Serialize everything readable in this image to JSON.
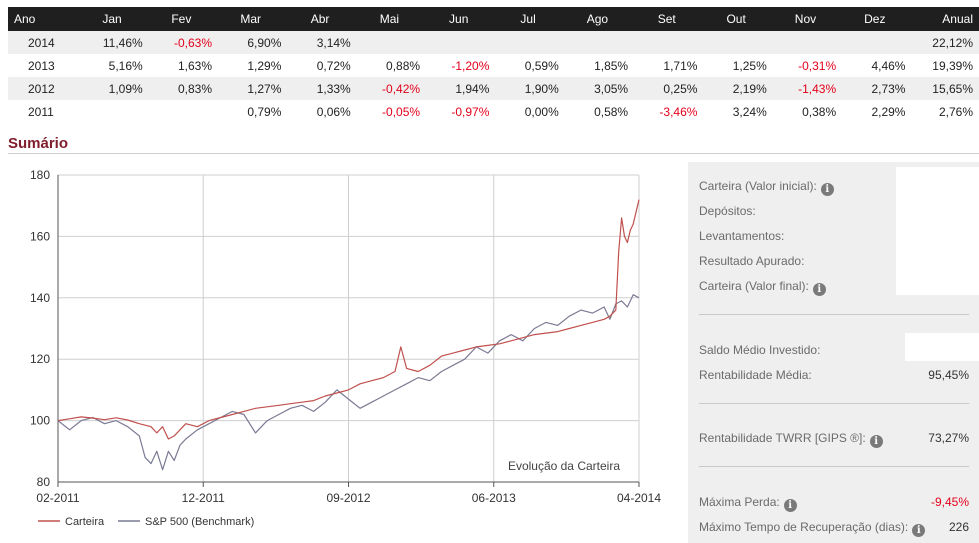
{
  "returns_table": {
    "headers": [
      "Ano",
      "Jan",
      "Fev",
      "Mar",
      "Abr",
      "Mai",
      "Jun",
      "Jul",
      "Ago",
      "Set",
      "Out",
      "Nov",
      "Dez",
      "Anual"
    ],
    "rows": [
      [
        "2014",
        "11,46%",
        "-0,63%",
        "6,90%",
        "3,14%",
        "",
        "",
        "",
        "",
        "",
        "",
        "",
        "",
        "22,12%"
      ],
      [
        "2013",
        "5,16%",
        "1,63%",
        "1,29%",
        "0,72%",
        "0,88%",
        "-1,20%",
        "0,59%",
        "1,85%",
        "1,71%",
        "1,25%",
        "-0,31%",
        "4,46%",
        "19,39%"
      ],
      [
        "2012",
        "1,09%",
        "0,83%",
        "1,27%",
        "1,33%",
        "-0,42%",
        "1,94%",
        "1,90%",
        "3,05%",
        "0,25%",
        "2,19%",
        "-1,43%",
        "2,73%",
        "15,65%"
      ],
      [
        "2011",
        "",
        "",
        "0,79%",
        "0,06%",
        "-0,05%",
        "-0,97%",
        "0,00%",
        "0,58%",
        "-3,46%",
        "3,24%",
        "0,38%",
        "2,29%",
        "2,76%"
      ]
    ]
  },
  "summary_title": "Sumário",
  "chart_data": {
    "type": "line",
    "title": "Evolução da Carteira",
    "x": [
      "02-2011",
      "12-2011",
      "09-2012",
      "06-2013",
      "04-2014"
    ],
    "ylim": [
      80,
      180
    ],
    "yticks": [
      80,
      100,
      120,
      140,
      160,
      180
    ],
    "grid": true,
    "legend_position": "bottom-left",
    "series": [
      {
        "name": "Carteira",
        "color": "#c0504d",
        "points": [
          [
            0,
            100
          ],
          [
            0.02,
            100.6
          ],
          [
            0.04,
            101.2
          ],
          [
            0.06,
            100.8
          ],
          [
            0.08,
            100.3
          ],
          [
            0.1,
            100.9
          ],
          [
            0.12,
            100.2
          ],
          [
            0.14,
            99
          ],
          [
            0.16,
            98
          ],
          [
            0.17,
            96
          ],
          [
            0.18,
            98
          ],
          [
            0.19,
            94
          ],
          [
            0.2,
            95
          ],
          [
            0.21,
            97
          ],
          [
            0.22,
            99
          ],
          [
            0.24,
            98
          ],
          [
            0.26,
            100
          ],
          [
            0.28,
            101
          ],
          [
            0.3,
            102
          ],
          [
            0.32,
            103
          ],
          [
            0.34,
            104
          ],
          [
            0.36,
            104.5
          ],
          [
            0.38,
            105
          ],
          [
            0.4,
            105.5
          ],
          [
            0.42,
            106
          ],
          [
            0.44,
            106.5
          ],
          [
            0.46,
            108
          ],
          [
            0.48,
            109
          ],
          [
            0.5,
            110
          ],
          [
            0.52,
            112
          ],
          [
            0.54,
            113
          ],
          [
            0.56,
            114
          ],
          [
            0.58,
            116
          ],
          [
            0.59,
            124
          ],
          [
            0.6,
            117
          ],
          [
            0.62,
            116
          ],
          [
            0.64,
            118
          ],
          [
            0.66,
            121
          ],
          [
            0.68,
            122
          ],
          [
            0.7,
            123
          ],
          [
            0.72,
            124
          ],
          [
            0.74,
            124.5
          ],
          [
            0.76,
            125
          ],
          [
            0.78,
            126
          ],
          [
            0.8,
            127
          ],
          [
            0.82,
            128
          ],
          [
            0.84,
            128.5
          ],
          [
            0.86,
            129
          ],
          [
            0.88,
            130
          ],
          [
            0.9,
            131
          ],
          [
            0.92,
            132
          ],
          [
            0.94,
            133
          ],
          [
            0.95,
            134
          ],
          [
            0.96,
            136
          ],
          [
            0.965,
            155
          ],
          [
            0.97,
            166
          ],
          [
            0.975,
            160
          ],
          [
            0.98,
            158
          ],
          [
            0.985,
            162
          ],
          [
            0.99,
            164
          ],
          [
            0.995,
            168
          ],
          [
            1.0,
            172
          ]
        ]
      },
      {
        "name": "S&P 500 (Benchmark)",
        "color": "#7a7a94",
        "points": [
          [
            0,
            100
          ],
          [
            0.02,
            97
          ],
          [
            0.04,
            100
          ],
          [
            0.06,
            101
          ],
          [
            0.08,
            99
          ],
          [
            0.1,
            100
          ],
          [
            0.12,
            98
          ],
          [
            0.14,
            95
          ],
          [
            0.15,
            88
          ],
          [
            0.16,
            86
          ],
          [
            0.17,
            90
          ],
          [
            0.18,
            84
          ],
          [
            0.19,
            90
          ],
          [
            0.2,
            87
          ],
          [
            0.21,
            92
          ],
          [
            0.22,
            94
          ],
          [
            0.24,
            97
          ],
          [
            0.26,
            99
          ],
          [
            0.28,
            101
          ],
          [
            0.3,
            103
          ],
          [
            0.32,
            102
          ],
          [
            0.34,
            96
          ],
          [
            0.36,
            100
          ],
          [
            0.38,
            102
          ],
          [
            0.4,
            104
          ],
          [
            0.42,
            105
          ],
          [
            0.44,
            103
          ],
          [
            0.46,
            106
          ],
          [
            0.48,
            110
          ],
          [
            0.5,
            107
          ],
          [
            0.52,
            104
          ],
          [
            0.54,
            106
          ],
          [
            0.56,
            108
          ],
          [
            0.58,
            110
          ],
          [
            0.6,
            112
          ],
          [
            0.62,
            114
          ],
          [
            0.64,
            113
          ],
          [
            0.66,
            116
          ],
          [
            0.68,
            118
          ],
          [
            0.7,
            120
          ],
          [
            0.72,
            124
          ],
          [
            0.74,
            122
          ],
          [
            0.76,
            126
          ],
          [
            0.78,
            128
          ],
          [
            0.8,
            126
          ],
          [
            0.82,
            130
          ],
          [
            0.84,
            132
          ],
          [
            0.86,
            131
          ],
          [
            0.88,
            134
          ],
          [
            0.9,
            136
          ],
          [
            0.92,
            135
          ],
          [
            0.94,
            137
          ],
          [
            0.95,
            133
          ],
          [
            0.96,
            138
          ],
          [
            0.97,
            139
          ],
          [
            0.98,
            137
          ],
          [
            0.99,
            141
          ],
          [
            1.0,
            140
          ]
        ]
      }
    ]
  },
  "panel": {
    "initial_value_label": "Carteira (Valor inicial):",
    "deposits_label": "Depósitos:",
    "withdrawals_label": "Levantamentos:",
    "result_label": "Resultado Apurado:",
    "final_value_label": "Carteira (Valor final):",
    "avg_balance_label": "Saldo Médio Investido:",
    "avg_return_label": "Rentabilidade Média:",
    "avg_return_value": "95,45%",
    "twrr_label": "Rentabilidade TWRR [GIPS ®]:",
    "twrr_value": "73,27%",
    "max_loss_label": "Máxima Perda:",
    "max_loss_value": "-9,45%",
    "max_recovery_label": "Máximo Tempo de Recuperação (dias):",
    "max_recovery_value": "226",
    "info_glyph": "i"
  }
}
